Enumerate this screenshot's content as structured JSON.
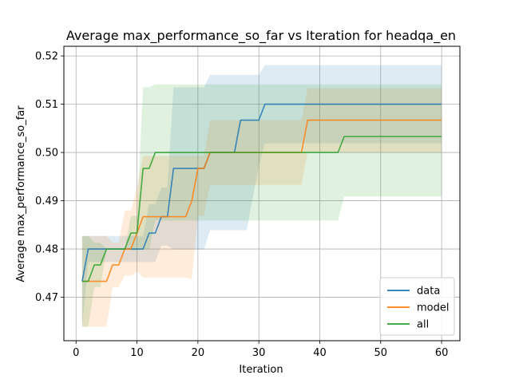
{
  "chart_data": {
    "type": "line",
    "title": "Average max_performance_so_far vs Iteration for headqa_en",
    "xlabel": "Iteration",
    "ylabel": "Average max_performance_so_far",
    "xlim": [
      -2.0,
      63.0
    ],
    "ylim": [
      0.461,
      0.522
    ],
    "xticks": [
      0,
      10,
      20,
      30,
      40,
      50,
      60
    ],
    "yticks": [
      0.47,
      0.48,
      0.49,
      0.5,
      0.51,
      0.52
    ],
    "ytick_labels": [
      "0.47",
      "0.48",
      "0.49",
      "0.50",
      "0.51",
      "0.52"
    ],
    "grid": true,
    "legend_position": "lower right",
    "series": [
      {
        "name": "data",
        "color": "#1f77b4",
        "x": [
          1,
          2,
          3,
          9,
          11,
          12,
          13,
          14,
          15,
          16,
          21,
          22,
          26,
          27,
          28,
          30,
          31,
          60
        ],
        "y": [
          0.4733,
          0.48,
          0.48,
          0.48,
          0.48,
          0.4833,
          0.4833,
          0.4867,
          0.4867,
          0.4967,
          0.4967,
          0.5,
          0.5,
          0.5067,
          0.5067,
          0.5067,
          0.51,
          0.51
        ],
        "upper": [
          0.4827,
          0.4827,
          0.4827,
          0.4827,
          0.4827,
          0.4893,
          0.4893,
          0.4927,
          0.4927,
          0.5135,
          0.5135,
          0.5161,
          0.5161,
          0.5161,
          0.5161,
          0.5161,
          0.5181,
          0.5181
        ],
        "lower": [
          0.4639,
          0.4773,
          0.4773,
          0.4773,
          0.4773,
          0.4773,
          0.4773,
          0.4807,
          0.4807,
          0.4799,
          0.4799,
          0.4839,
          0.4839,
          0.4839,
          0.4839,
          0.4973,
          0.5019,
          0.5019
        ]
      },
      {
        "name": "model",
        "color": "#ff7f0e",
        "x": [
          1,
          2,
          3,
          4,
          5,
          6,
          7,
          8,
          9,
          10,
          11,
          18,
          19,
          20,
          21,
          22,
          37,
          38,
          60
        ],
        "y": [
          0.4733,
          0.4733,
          0.4733,
          0.4733,
          0.4733,
          0.4767,
          0.4767,
          0.48,
          0.48,
          0.4833,
          0.4867,
          0.4867,
          0.49,
          0.4967,
          0.4967,
          0.5,
          0.5,
          0.5067,
          0.5067
        ],
        "upper": [
          0.4827,
          0.4827,
          0.4827,
          0.4827,
          0.4827,
          0.4813,
          0.4813,
          0.488,
          0.488,
          0.4927,
          0.4993,
          0.4993,
          0.4993,
          0.4993,
          0.4993,
          0.5067,
          0.5067,
          0.5133,
          0.5133
        ],
        "lower": [
          0.4639,
          0.4639,
          0.4639,
          0.4639,
          0.4639,
          0.4721,
          0.4721,
          0.4745,
          0.4745,
          0.4753,
          0.4741,
          0.4741,
          0.4737,
          0.4869,
          0.4869,
          0.4933,
          0.4933,
          0.5001,
          0.5001
        ]
      },
      {
        "name": "all",
        "color": "#2ca02c",
        "x": [
          1,
          2,
          3,
          4,
          5,
          6,
          7,
          8,
          9,
          10,
          11,
          12,
          13,
          43,
          44,
          60
        ],
        "y": [
          0.4733,
          0.4733,
          0.4767,
          0.4767,
          0.48,
          0.48,
          0.48,
          0.48,
          0.4833,
          0.4833,
          0.4967,
          0.4967,
          0.5,
          0.5,
          0.5033,
          0.5033
        ],
        "upper": [
          0.4827,
          0.4827,
          0.4813,
          0.4813,
          0.48,
          0.48,
          0.48,
          0.48,
          0.4869,
          0.4869,
          0.5135,
          0.5135,
          0.5141,
          0.5141,
          0.5141,
          0.5141
        ],
        "lower": [
          0.4639,
          0.4639,
          0.4721,
          0.4721,
          0.48,
          0.48,
          0.48,
          0.48,
          0.4797,
          0.4797,
          0.4799,
          0.4799,
          0.4859,
          0.4859,
          0.4909,
          0.4909
        ]
      }
    ]
  }
}
